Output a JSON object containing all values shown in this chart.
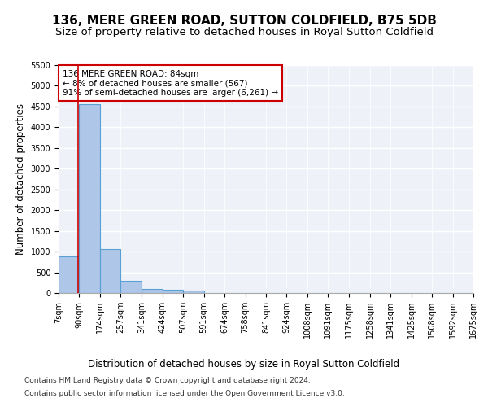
{
  "title_line1": "136, MERE GREEN ROAD, SUTTON COLDFIELD, B75 5DB",
  "title_line2": "Size of property relative to detached houses in Royal Sutton Coldfield",
  "xlabel": "Distribution of detached houses by size in Royal Sutton Coldfield",
  "ylabel": "Number of detached properties",
  "footer_line1": "Contains HM Land Registry data © Crown copyright and database right 2024.",
  "footer_line2": "Contains public sector information licensed under the Open Government Licence v3.0.",
  "annotation_line1": "136 MERE GREEN ROAD: 84sqm",
  "annotation_line2": "← 8% of detached houses are smaller (567)",
  "annotation_line3": "91% of semi-detached houses are larger (6,261) →",
  "subject_size_sqm": 84,
  "bin_edges": [
    7,
    90,
    174,
    257,
    341,
    424,
    507,
    591,
    674,
    758,
    841,
    924,
    1008,
    1091,
    1175,
    1258,
    1341,
    1425,
    1508,
    1592,
    1675
  ],
  "bar_values": [
    880,
    4560,
    1060,
    290,
    90,
    80,
    50,
    0,
    0,
    0,
    0,
    0,
    0,
    0,
    0,
    0,
    0,
    0,
    0,
    0
  ],
  "bar_color": "#aec6e8",
  "bar_edge_color": "#5a9fd4",
  "subject_line_color": "#cc0000",
  "annotation_box_color": "#cc0000",
  "background_color": "#eef2f8",
  "ylim": [
    0,
    5500
  ],
  "yticks": [
    0,
    500,
    1000,
    1500,
    2000,
    2500,
    3000,
    3500,
    4000,
    4500,
    5000,
    5500
  ],
  "grid_color": "#ffffff",
  "title_fontsize": 11,
  "subtitle_fontsize": 9.5,
  "axis_label_fontsize": 8.5,
  "tick_fontsize": 7,
  "annotation_fontsize": 7.5,
  "footer_fontsize": 6.5
}
